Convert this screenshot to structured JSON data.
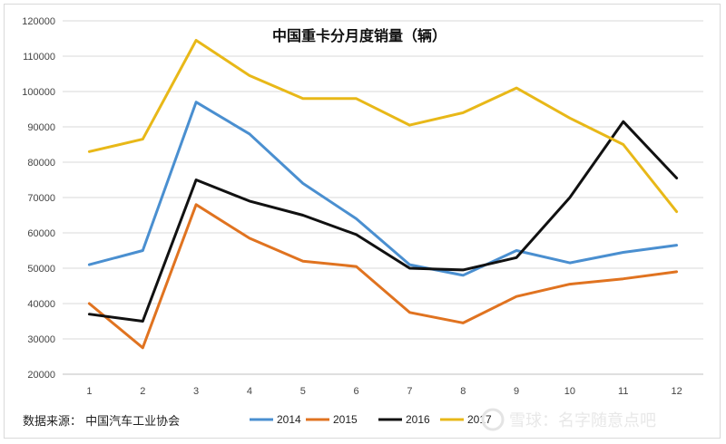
{
  "chart_data": {
    "type": "line",
    "title": "中国重卡分月度销量（辆）",
    "xlabel": "",
    "ylabel": "",
    "categories": [
      "1",
      "2",
      "3",
      "4",
      "5",
      "6",
      "7",
      "8",
      "9",
      "10",
      "11",
      "12"
    ],
    "ylim": [
      20000,
      120000
    ],
    "yticks": [
      20000,
      30000,
      40000,
      50000,
      60000,
      70000,
      80000,
      90000,
      100000,
      110000,
      120000
    ],
    "ytick_labels": [
      "20000",
      "30000",
      "40000",
      "50000",
      "60000",
      "70000",
      "80000",
      "90000",
      "100000",
      "110000",
      "120000"
    ],
    "grid": true,
    "legend_position": "bottom",
    "series": [
      {
        "name": "2014",
        "color": "#4a8fd0",
        "values": [
          51000,
          55000,
          97000,
          88000,
          74000,
          64000,
          51000,
          48000,
          55000,
          51500,
          54500,
          56500
        ]
      },
      {
        "name": "2015",
        "color": "#e07320",
        "values": [
          40000,
          27500,
          68000,
          58500,
          52000,
          50500,
          37500,
          34500,
          42000,
          45500,
          47000,
          49000
        ]
      },
      {
        "name": "2016",
        "color": "#111111",
        "values": [
          37000,
          35000,
          75000,
          69000,
          65000,
          59500,
          50000,
          49500,
          53000,
          70000,
          91500,
          75500
        ]
      },
      {
        "name": "2017",
        "color": "#e8b818",
        "values": [
          83000,
          86500,
          114500,
          104500,
          98000,
          98000,
          90500,
          94000,
          101000,
          92500,
          85000,
          66000
        ]
      }
    ]
  },
  "footer": {
    "source": "数据来源：  中国汽车工业协会"
  },
  "watermark": {
    "text": "雪球：名字随意点吧"
  }
}
